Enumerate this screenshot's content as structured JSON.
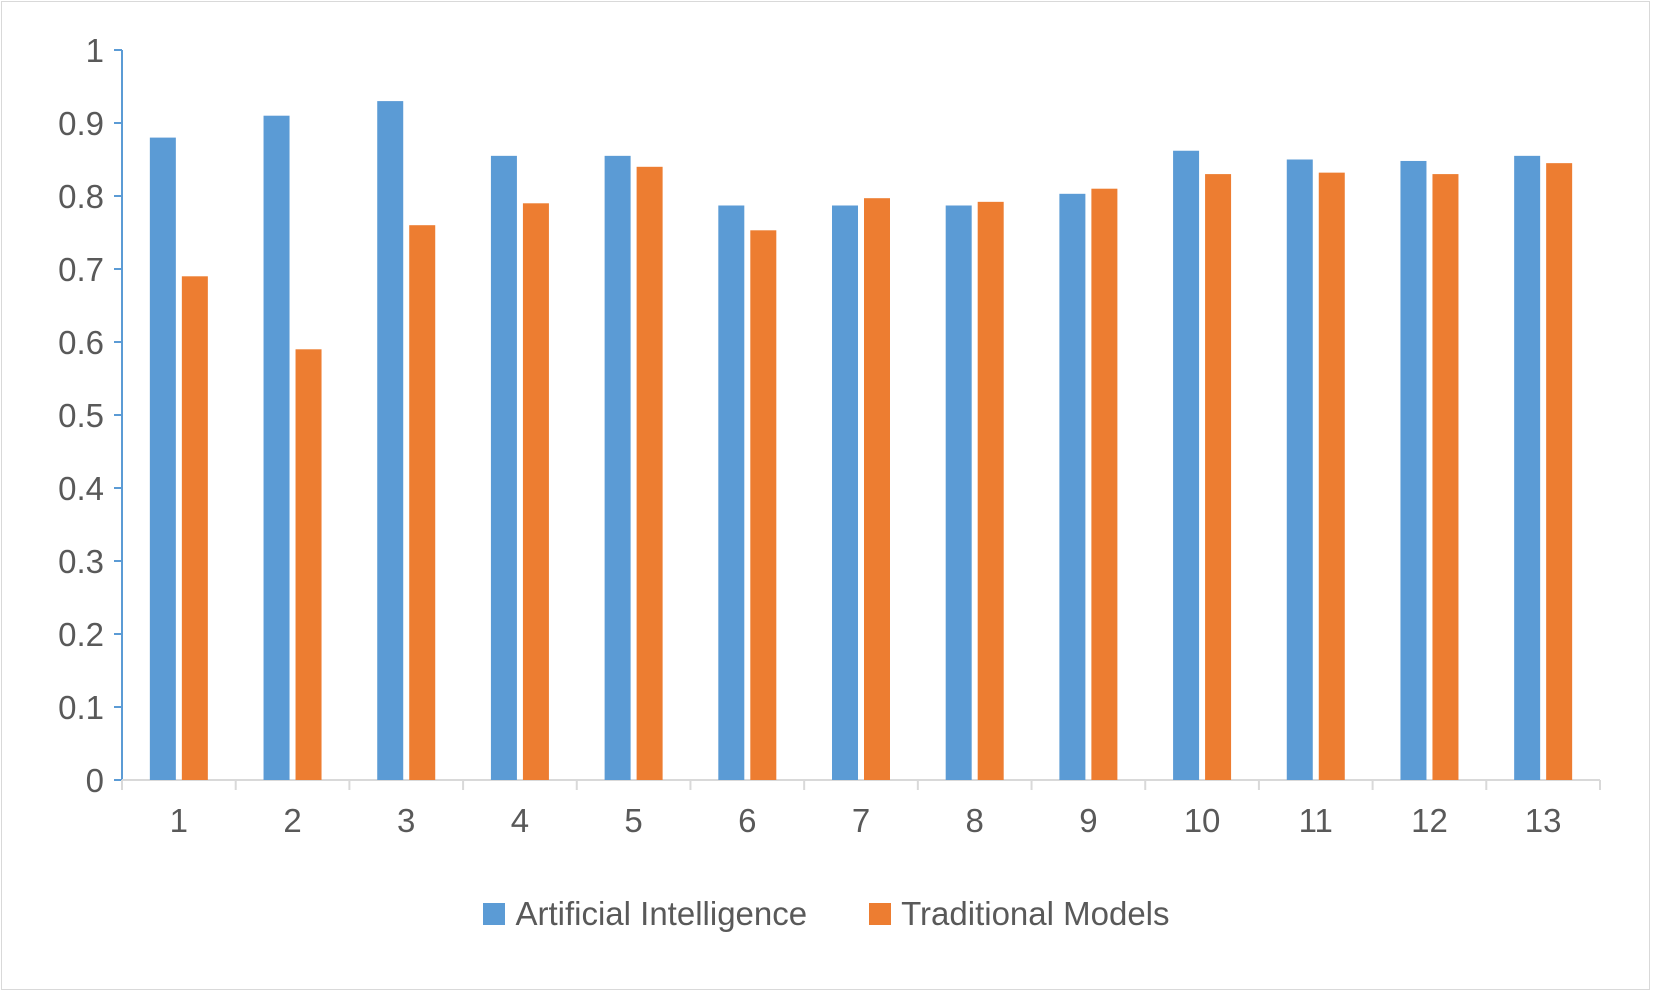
{
  "chart_data": {
    "type": "bar",
    "title": "",
    "xlabel": "",
    "ylabel": "",
    "ylim": [
      0,
      1
    ],
    "yticks": [
      "0",
      "0.1",
      "0.2",
      "0.3",
      "0.4",
      "0.5",
      "0.6",
      "0.7",
      "0.8",
      "0.9",
      "1"
    ],
    "categories": [
      "1",
      "2",
      "3",
      "4",
      "5",
      "6",
      "7",
      "8",
      "9",
      "10",
      "11",
      "12",
      "13"
    ],
    "series": [
      {
        "name": "Artificial Intelligence",
        "color": "#5b9bd5",
        "values": [
          0.88,
          0.91,
          0.93,
          0.855,
          0.855,
          0.787,
          0.787,
          0.787,
          0.803,
          0.862,
          0.85,
          0.848,
          0.855
        ]
      },
      {
        "name": "Traditional Models",
        "color": "#ed7d31",
        "values": [
          0.69,
          0.59,
          0.76,
          0.79,
          0.84,
          0.753,
          0.797,
          0.792,
          0.81,
          0.83,
          0.832,
          0.83,
          0.845
        ]
      }
    ],
    "grid": false,
    "legend_position": "bottom"
  }
}
